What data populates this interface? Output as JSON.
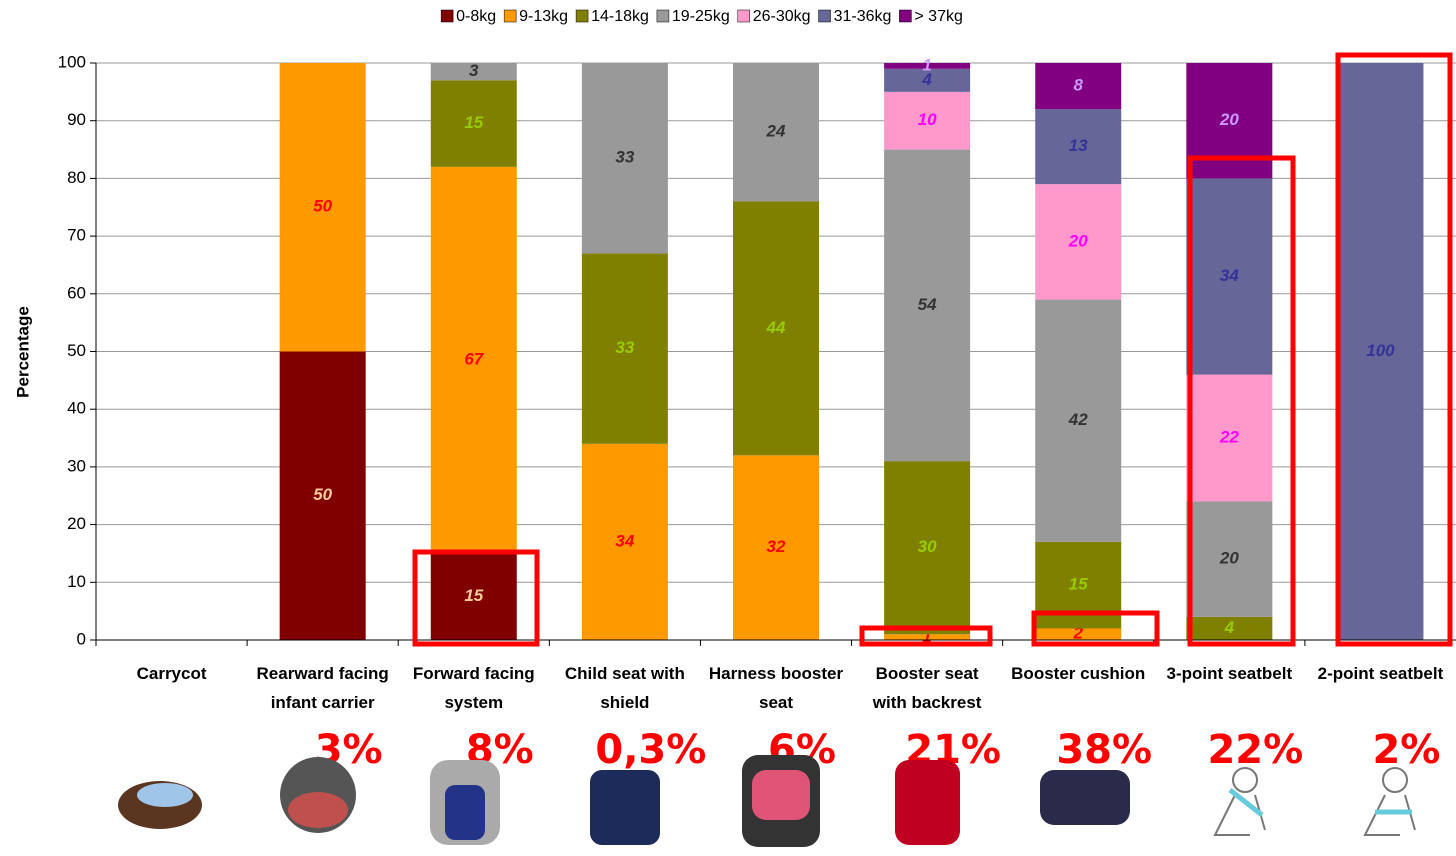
{
  "chart_data": {
    "type": "stacked-bar",
    "y_label": "Percentage",
    "categories": [
      "Carrycot",
      "Rearward facing infant carrier",
      "Forward facing system",
      "Child seat with shield",
      "Harness booster seat",
      "Booster seat with backrest",
      "Booster cushion",
      "3-point seatbelt",
      "2-point seatbelt"
    ],
    "series": [
      {
        "name": "0-8kg",
        "color": "#800000",
        "label_color": "#ffcc99",
        "values": [
          null,
          50,
          15,
          null,
          null,
          null,
          null,
          null,
          null
        ]
      },
      {
        "name": "9-13kg",
        "color": "#ff9900",
        "label_color": "#ff0000",
        "values": [
          null,
          50,
          67,
          34,
          32,
          1,
          2,
          null,
          null
        ]
      },
      {
        "name": "14-18kg",
        "color": "#808000",
        "label_color": "#99cc00",
        "values": [
          null,
          null,
          15,
          33,
          44,
          30,
          15,
          4,
          null
        ]
      },
      {
        "name": "19-25kg",
        "color": "#999999",
        "label_color": "#333333",
        "values": [
          null,
          null,
          3,
          33,
          24,
          54,
          42,
          20,
          null
        ]
      },
      {
        "name": "26-30kg",
        "color": "#ff99cc",
        "label_color": "#ff00ff",
        "values": [
          null,
          null,
          null,
          null,
          null,
          10,
          20,
          22,
          null
        ]
      },
      {
        "name": "31-36kg",
        "color": "#666699",
        "label_color": "#333399",
        "values": [
          null,
          null,
          null,
          null,
          null,
          4,
          13,
          34,
          100
        ]
      },
      {
        "name": "> 37kg",
        "color": "#800080",
        "label_color": "#cc99ff",
        "values": [
          null,
          null,
          null,
          null,
          null,
          1,
          8,
          20,
          null
        ]
      }
    ],
    "usage_labels": [
      null,
      "3%",
      "8%",
      "0,3%",
      "6%",
      "21%",
      "38%",
      "22%",
      "2%"
    ],
    "ylim": [
      0,
      100
    ],
    "yticks": [
      0,
      10,
      20,
      30,
      40,
      50,
      60,
      70,
      80,
      90,
      100
    ],
    "grid": true,
    "legend": "top"
  }
}
